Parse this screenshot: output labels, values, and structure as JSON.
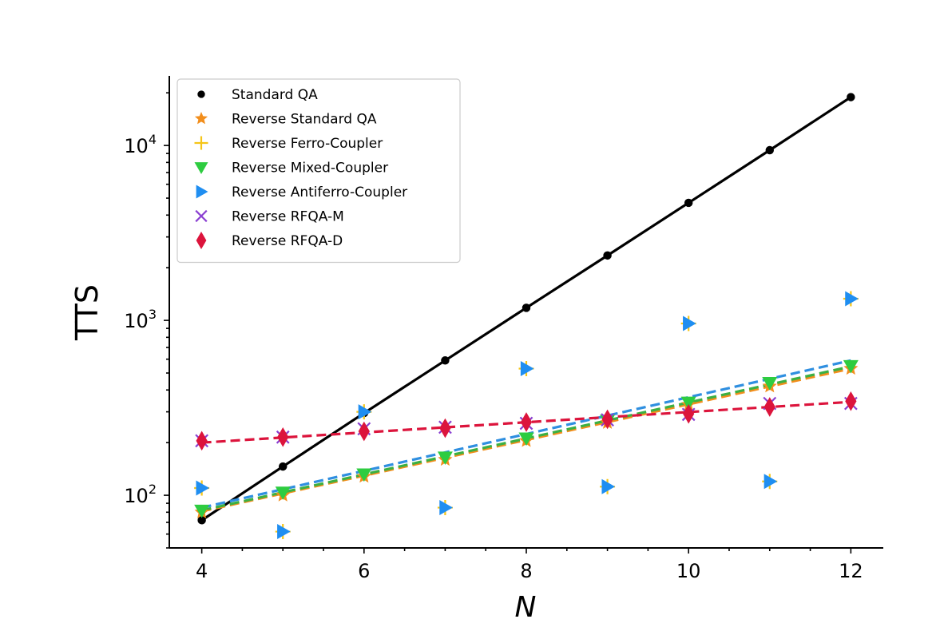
{
  "chart_data": {
    "type": "scatter",
    "xlabel": "N",
    "ylabel": "TTS",
    "y_scale": "log",
    "xlim": [
      3.6,
      12.4
    ],
    "ylim": [
      50,
      25000
    ],
    "x_ticks": [
      4,
      6,
      8,
      10,
      12
    ],
    "y_ticks": [
      {
        "value": 100,
        "base": "10",
        "exp": "2"
      },
      {
        "value": 1000,
        "base": "10",
        "exp": "3"
      },
      {
        "value": 10000,
        "base": "10",
        "exp": "4"
      }
    ],
    "grid": false,
    "legend_placement": "top-left",
    "series": [
      {
        "name": "Standard QA",
        "marker": "circle",
        "color": "#000000",
        "x": [
          4,
          5,
          6,
          7,
          8,
          9,
          10,
          11,
          12
        ],
        "y": [
          72,
          146,
          295,
          590,
          1180,
          2350,
          4700,
          9400,
          18900
        ],
        "fit": {
          "style": "solid",
          "color": "#000000",
          "y_start": 72,
          "y_end": 18900
        }
      },
      {
        "name": "Reverse Standard QA",
        "marker": "star",
        "color": "#f28e1c",
        "x": [
          4,
          5,
          6,
          7,
          8,
          9,
          10,
          11,
          12
        ],
        "y": [
          80,
          100,
          128,
          160,
          205,
          260,
          330,
          420,
          530
        ],
        "fit": {
          "style": "dashed",
          "color": "#f28e1c",
          "y_start": 81,
          "y_end": 530
        }
      },
      {
        "name": "Reverse Ferro-Coupler",
        "marker": "plus",
        "color": "#f5c518",
        "x": [
          4,
          5,
          6,
          7,
          8,
          9,
          10,
          11,
          12
        ],
        "y": [
          110,
          62,
          300,
          85,
          530,
          112,
          960,
          120,
          1330
        ],
        "fit": null
      },
      {
        "name": "Reverse Mixed-Coupler",
        "marker": "triangle-down",
        "color": "#2ecc40",
        "x": [
          4,
          5,
          6,
          7,
          8,
          9,
          10,
          11,
          12
        ],
        "y": [
          82,
          104,
          132,
          165,
          212,
          268,
          340,
          440,
          550
        ],
        "fit": {
          "style": "dashed",
          "color": "#3cb043",
          "y_start": 82,
          "y_end": 545
        }
      },
      {
        "name": "Reverse Antiferro-Coupler",
        "marker": "triangle-right",
        "color": "#1f8ef1",
        "x": [
          4,
          5,
          6,
          7,
          8,
          9,
          10,
          11,
          12
        ],
        "y": [
          110,
          62,
          300,
          85,
          530,
          112,
          960,
          120,
          1330
        ],
        "fit": {
          "style": "dashed",
          "color": "#2f8fe0",
          "y_start": 85,
          "y_end": 590
        }
      },
      {
        "name": "Reverse RFQA-M",
        "marker": "x",
        "color": "#8a3fd1",
        "x": [
          4,
          5,
          6,
          7,
          8,
          9,
          10,
          11,
          12
        ],
        "y": [
          205,
          215,
          240,
          245,
          258,
          270,
          290,
          335,
          335
        ],
        "fit": null
      },
      {
        "name": "Reverse RFQA-D",
        "marker": "diamond",
        "color": "#dc143c",
        "x": [
          4,
          5,
          6,
          7,
          8,
          9,
          10,
          11,
          12
        ],
        "y": [
          205,
          215,
          232,
          242,
          262,
          272,
          292,
          320,
          345
        ],
        "fit": {
          "style": "dashed",
          "color": "#dc143c",
          "y_start": 200,
          "y_end": 342
        }
      }
    ]
  }
}
